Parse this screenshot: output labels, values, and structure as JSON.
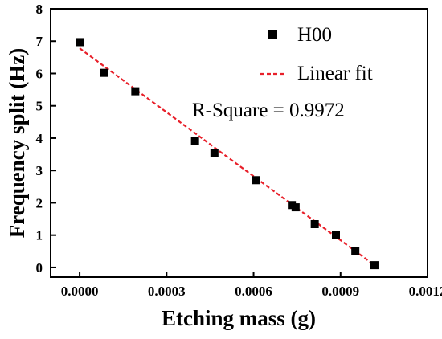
{
  "chart_data": {
    "type": "scatter",
    "xlabel": "Etching mass (g)",
    "ylabel": "Frequency split (Hz)",
    "xlim": [
      -0.0001,
      0.0012
    ],
    "ylim": [
      -0.3,
      8
    ],
    "x_ticks": [
      "0.0000",
      "0.0003",
      "0.0006",
      "0.0009",
      "0.0012"
    ],
    "x_tick_values": [
      0,
      0.0003,
      0.0006,
      0.0009,
      0.0012
    ],
    "y_ticks": [
      "0",
      "1",
      "2",
      "3",
      "4",
      "5",
      "6",
      "7",
      "8"
    ],
    "y_tick_values": [
      0,
      1,
      2,
      3,
      4,
      5,
      6,
      7,
      8
    ],
    "series": [
      {
        "name": "H00",
        "marker": "square",
        "color": "#000000",
        "x": [
          0.0,
          8.5e-05,
          0.000192,
          0.000398,
          0.000465,
          0.000608,
          0.000732,
          0.000745,
          0.000811,
          0.000884,
          0.000951,
          0.001017
        ],
        "y": [
          6.97,
          6.02,
          5.45,
          3.91,
          3.55,
          2.7,
          1.93,
          1.86,
          1.34,
          1.0,
          0.52,
          0.07
        ]
      },
      {
        "name": "Linear fit",
        "line_style": "dashed",
        "color": "#e8202a",
        "x": [
          0.0,
          0.001017
        ],
        "y": [
          6.78,
          0.07
        ]
      }
    ],
    "annotation": "R-Square = 0.9972",
    "legend_position": "top-right",
    "grid": false
  }
}
